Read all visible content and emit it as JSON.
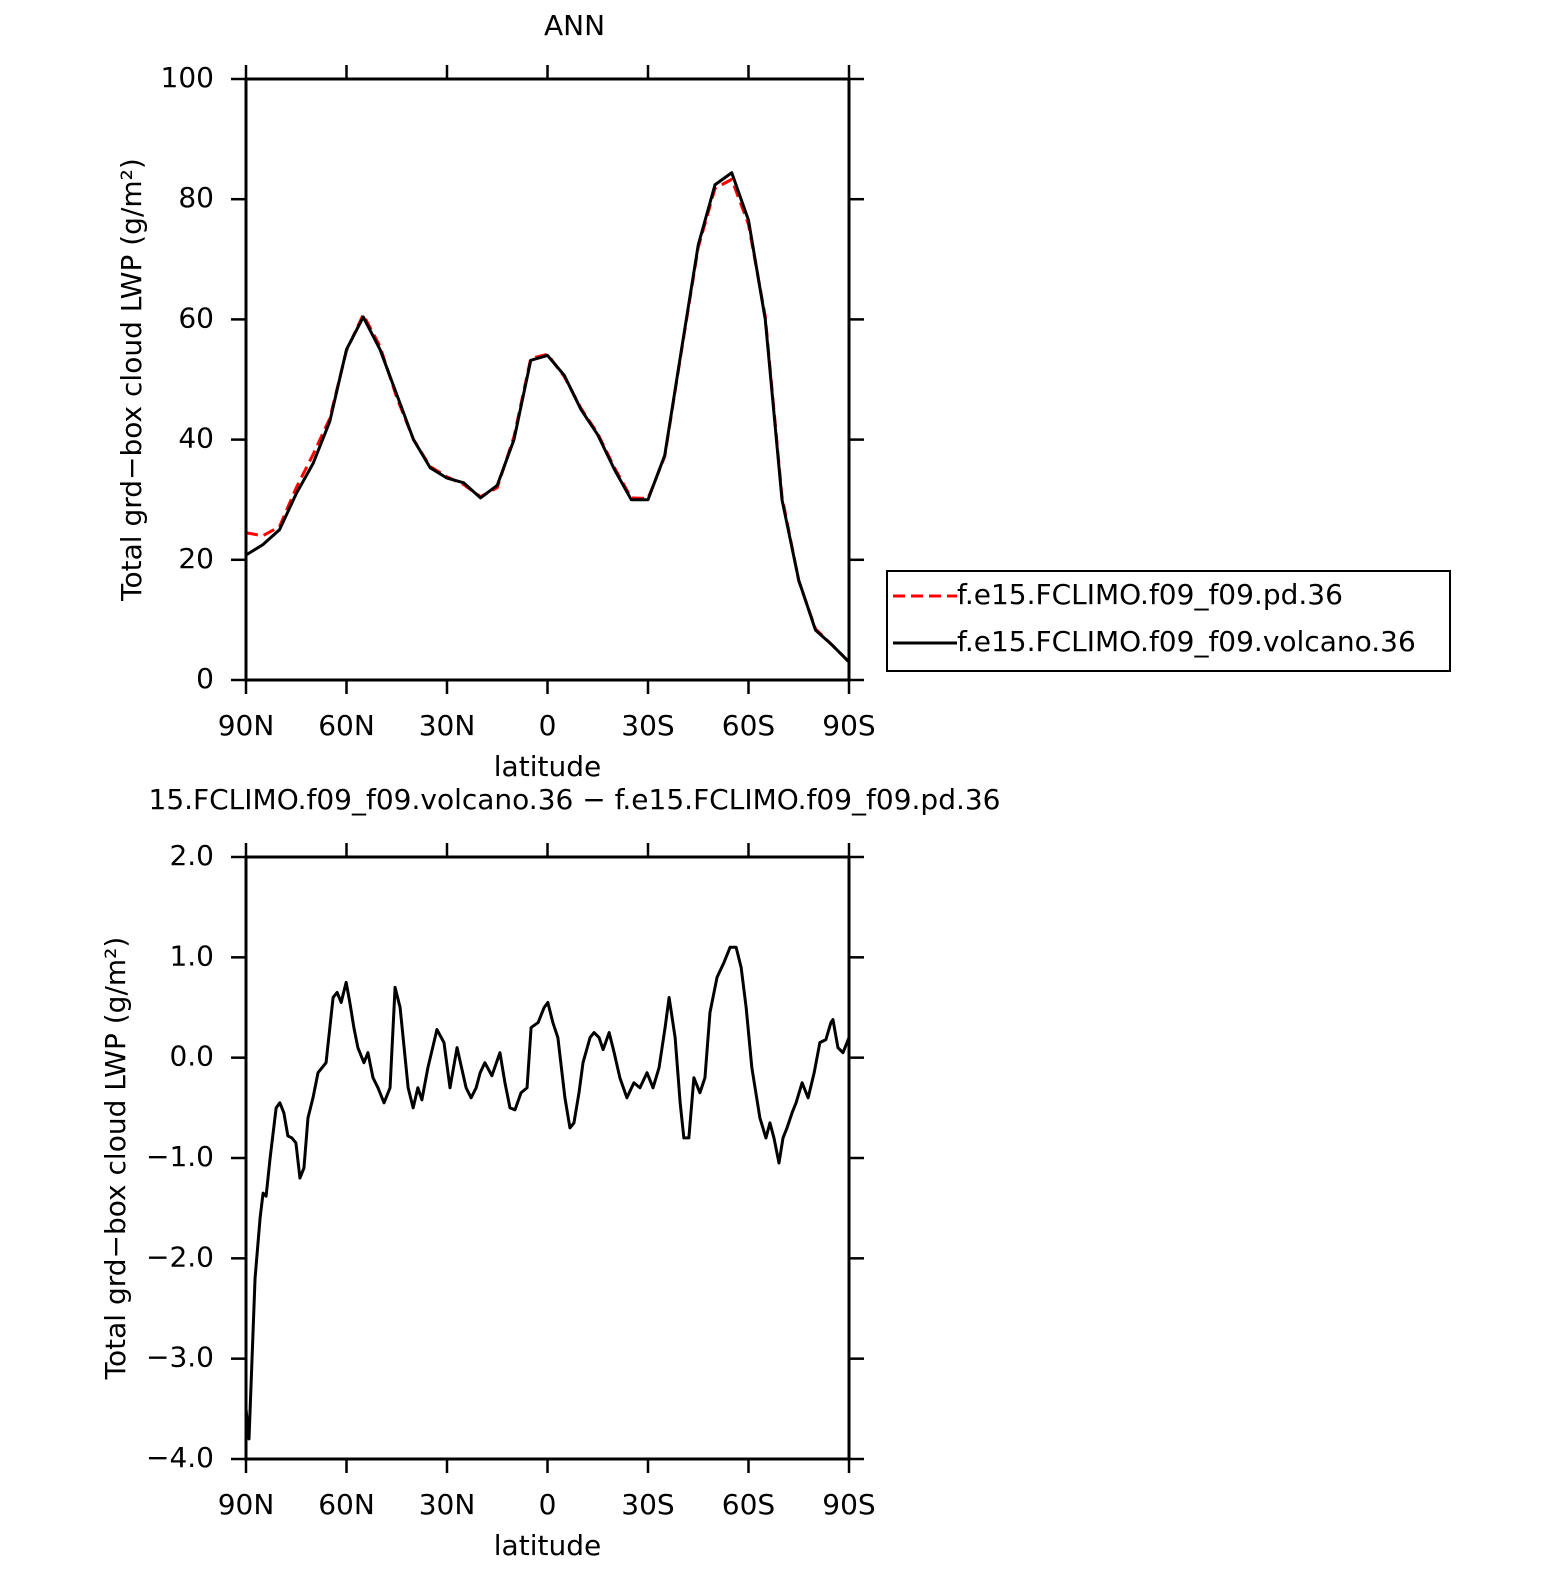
{
  "chart_data": [
    {
      "type": "line",
      "title": "ANN",
      "xlabel": "latitude",
      "ylabel": "Total grd−box cloud LWP (g/m²)",
      "x": [
        90,
        85,
        80,
        75,
        70,
        65,
        60,
        55,
        50,
        45,
        40,
        35,
        30,
        25,
        20,
        15,
        10,
        5,
        0,
        -5,
        -10,
        -15,
        -20,
        -25,
        -30,
        -35,
        -40,
        -45,
        -50,
        -55,
        -60,
        -65,
        -70,
        -75,
        -80,
        -85,
        -90
      ],
      "series": [
        {
          "name": "f.e15.FCLIMO.f09_f09.pd.36",
          "color": "#ff0000",
          "dash": true,
          "values": [
            24.5,
            24,
            25.5,
            32,
            37.5,
            43.5,
            54.8,
            60.8,
            55.5,
            47,
            40,
            35.5,
            33.8,
            32.5,
            30.5,
            32,
            40.5,
            53.5,
            54.2,
            50.5,
            45.2,
            41,
            35.3,
            30.3,
            30.2,
            37.2,
            54.8,
            72,
            81.8,
            83.3,
            75.8,
            60.5,
            30.5,
            16.5,
            8.5,
            5.8,
            3
          ]
        },
        {
          "name": "f.e15.FCLIMO.f09_f09.volcano.36",
          "color": "#000000",
          "dash": false,
          "values": [
            20.8,
            22.5,
            25,
            31,
            36,
            43,
            55,
            60.4,
            55,
            47.5,
            40,
            35.3,
            33.6,
            32.8,
            30.3,
            32.4,
            40,
            53.2,
            54,
            50.7,
            45,
            40.8,
            35,
            30,
            30,
            37.4,
            55,
            72.4,
            82.4,
            84.4,
            76.5,
            60,
            30,
            16.6,
            8.3,
            5.8,
            3
          ]
        }
      ],
      "xlim": [
        90,
        -90
      ],
      "xticks": [
        {
          "value": 90,
          "label": "90N"
        },
        {
          "value": 60,
          "label": "60N"
        },
        {
          "value": 30,
          "label": "30N"
        },
        0,
        {
          "value": -30,
          "label": "30S"
        },
        {
          "value": -60,
          "label": "60S"
        },
        {
          "value": -90,
          "label": "90S"
        }
      ],
      "ylim": [
        0,
        100
      ],
      "yticks": [
        0,
        20,
        40,
        60,
        80,
        100
      ],
      "legend": "outside-right"
    },
    {
      "type": "line",
      "title": "15.FCLIMO.f09_f09.volcano.36 − f.e15.FCLIMO.f09_f09.pd.36",
      "xlabel": "latitude",
      "ylabel": "Total grd−box cloud LWP (g/m²)",
      "x": [
        90,
        89.1,
        87.3,
        85.8,
        84.9,
        84,
        82.8,
        81,
        79.9,
        78.7,
        77.5,
        76.3,
        75.1,
        73.9,
        72.7,
        71.5,
        70,
        68.5,
        66.1,
        64,
        62.8,
        61.6,
        60.1,
        59,
        57.8,
        56.6,
        54.8,
        53.6,
        52.1,
        50.6,
        48.8,
        47,
        45.5,
        44,
        41.6,
        40.1,
        38.7,
        37.5,
        35.7,
        33,
        30.9,
        29.1,
        27,
        24.3,
        22.8,
        21.3,
        20.1,
        18.7,
        16.6,
        14.2,
        12.7,
        11.2,
        9.7,
        7.9,
        6.1,
        4.9,
        2.8,
        1,
        -0.1,
        -1.6,
        -3.1,
        -5.2,
        -6.7,
        -7.9,
        -9.4,
        -10.6,
        -12.7,
        -13.9,
        -15.4,
        -16.6,
        -18.4,
        -19.9,
        -21.6,
        -23.7,
        -25.8,
        -27.6,
        -29.7,
        -31.5,
        -33.3,
        -35.1,
        -36.3,
        -38.1,
        -39.6,
        -40.7,
        -42.2,
        -43.7,
        -45.5,
        -47,
        -48.5,
        -50.6,
        -52.7,
        -54.5,
        -56.3,
        -57.8,
        -59.3,
        -61,
        -63.4,
        -65.2,
        -66.4,
        -67.6,
        -69.1,
        -70.3,
        -71.5,
        -73,
        -74.2,
        -76,
        -77.8,
        -79.6,
        -81.3,
        -83.1,
        -84.6,
        -85.2,
        -86.7,
        -88.2,
        -90
      ],
      "color": "#000000",
      "values": [
        -3.5,
        -3.8,
        -2.2,
        -1.6,
        -1.35,
        -1.38,
        -1.0,
        -0.5,
        -0.45,
        -0.55,
        -0.78,
        -0.8,
        -0.85,
        -1.2,
        -1.1,
        -0.6,
        -0.4,
        -0.15,
        -0.05,
        0.6,
        0.65,
        0.55,
        0.75,
        0.55,
        0.3,
        0.1,
        -0.05,
        0.05,
        -0.2,
        -0.3,
        -0.45,
        -0.3,
        0.7,
        0.5,
        -0.3,
        -0.5,
        -0.3,
        -0.42,
        -0.1,
        0.28,
        0.15,
        -0.3,
        0.1,
        -0.3,
        -0.4,
        -0.3,
        -0.15,
        -0.05,
        -0.18,
        0.05,
        -0.25,
        -0.5,
        -0.52,
        -0.35,
        -0.3,
        0.3,
        0.35,
        0.5,
        0.55,
        0.35,
        0.2,
        -0.4,
        -0.7,
        -0.65,
        -0.35,
        -0.05,
        0.2,
        0.25,
        0.2,
        0.08,
        0.25,
        0.05,
        -0.2,
        -0.4,
        -0.25,
        -0.3,
        -0.15,
        -0.3,
        -0.1,
        0.3,
        0.6,
        0.2,
        -0.45,
        -0.8,
        -0.8,
        -0.2,
        -0.35,
        -0.2,
        0.45,
        0.8,
        0.95,
        1.1,
        1.1,
        0.9,
        0.5,
        -0.1,
        -0.6,
        -0.8,
        -0.65,
        -0.8,
        -1.05,
        -0.8,
        -0.7,
        -0.55,
        -0.45,
        -0.25,
        -0.4,
        -0.15,
        0.15,
        0.18,
        0.35,
        0.38,
        0.1,
        0.05,
        0.2
      ],
      "xlim": [
        90,
        -90
      ],
      "xticks": [
        {
          "value": 90,
          "label": "90N"
        },
        {
          "value": 60,
          "label": "60N"
        },
        {
          "value": 30,
          "label": "30N"
        },
        0,
        {
          "value": -30,
          "label": "30S"
        },
        {
          "value": -60,
          "label": "60S"
        },
        {
          "value": -90,
          "label": "90S"
        }
      ],
      "ylim": [
        -4,
        2
      ],
      "yticks": [
        {
          "value": -4,
          "label": "−4.0"
        },
        {
          "value": -3,
          "label": "−3.0"
        },
        {
          "value": -2,
          "label": "−2.0"
        },
        {
          "value": -1,
          "label": "−1.0"
        },
        {
          "value": 0,
          "label": "0.0"
        },
        {
          "value": 1,
          "label": "1.0"
        },
        {
          "value": 2,
          "label": "2.0"
        }
      ]
    }
  ]
}
